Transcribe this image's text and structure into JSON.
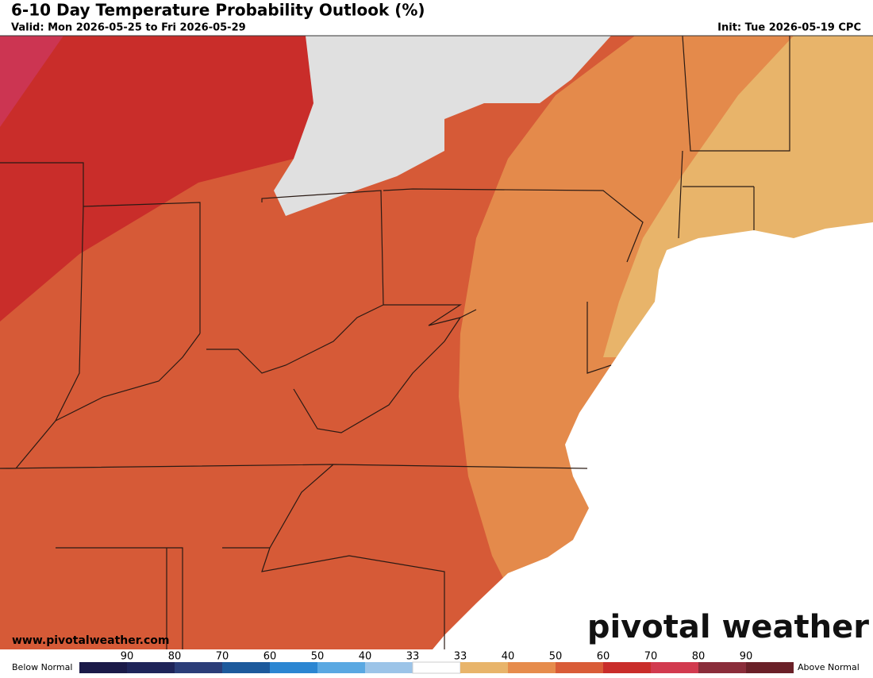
{
  "header": {
    "title": "6-10 Day Temperature Probability Outlook (%)",
    "valid": "Valid: Mon 2026-05-25 to Fri 2026-05-29",
    "init": "Init: Tue 2026-05-19 CPC"
  },
  "watermark": {
    "url": "www.pivotalweather.com",
    "logo": "pivotal weather"
  },
  "legend": {
    "below_label": "Below Normal",
    "above_label": "Above Normal",
    "below_ticks": [
      "90",
      "80",
      "70",
      "60",
      "50",
      "40",
      "33"
    ],
    "above_ticks": [
      "33",
      "40",
      "50",
      "60",
      "70",
      "80",
      "90"
    ],
    "colors": [
      "#1b1a48",
      "#1f2459",
      "#2b3d78",
      "#1d5a9c",
      "#2b86d2",
      "#5aa8e2",
      "#9cc4e8",
      "#ffffff",
      "#e8b46a",
      "#e68c4c",
      "#d95c37",
      "#c92d2a",
      "#d23a4f",
      "#8a2d3a",
      "#6a2028"
    ]
  }
}
